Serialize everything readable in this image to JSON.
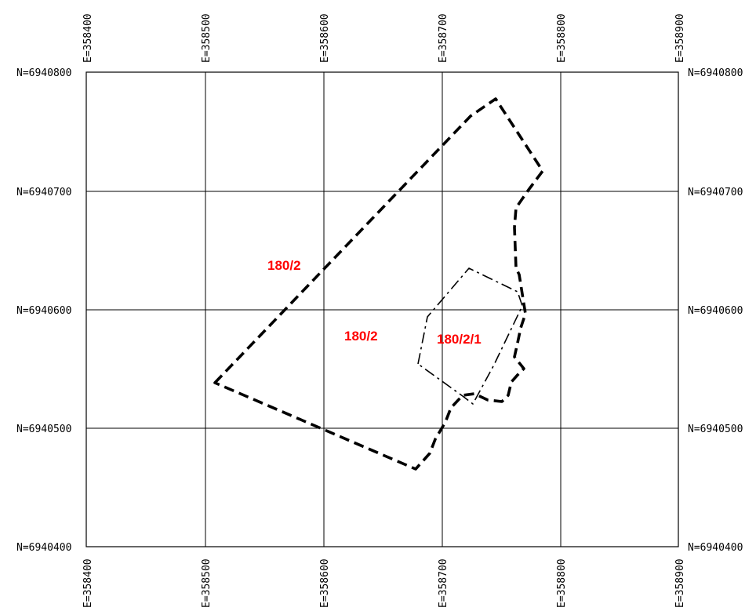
{
  "map": {
    "easting_ticks": [
      "E=358400",
      "E=358500",
      "E=358600",
      "E=358700",
      "E=358800",
      "E=358900"
    ],
    "northing_ticks": [
      "N=6940400",
      "N=6940500",
      "N=6940600",
      "N=6940700",
      "N=6940800"
    ],
    "label_color": "#ff0000",
    "line_color": "#000000",
    "parcels": [
      {
        "label": "180/2",
        "style": "dashed"
      },
      {
        "label": "180/2",
        "style": "dashed"
      },
      {
        "label": "180/2/1",
        "style": "dash-dot"
      }
    ]
  }
}
